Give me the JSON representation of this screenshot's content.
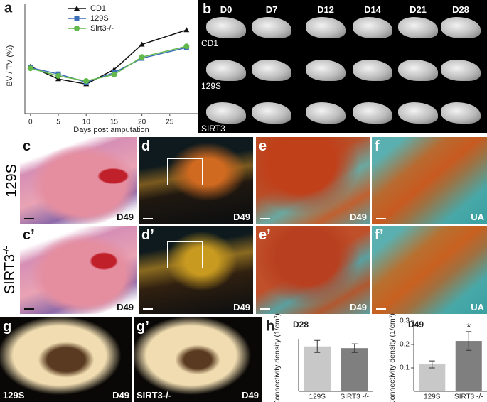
{
  "chart_data": [
    {
      "type": "line",
      "panel": "a",
      "ylabel": "BV / TV (%)",
      "xlabel": "Days post amputation",
      "x": [
        0,
        5,
        10,
        15,
        20,
        28
      ],
      "xlim": [
        -1,
        30
      ],
      "xticks": [
        0,
        5,
        10,
        15,
        20,
        25
      ],
      "ylim": [
        25,
        200
      ],
      "legend": "top",
      "series": [
        {
          "name": "CD1",
          "color": "#111111",
          "marker": "triangle",
          "values": [
            100,
            80,
            72,
            95,
            135,
            158
          ]
        },
        {
          "name": "129S",
          "color": "#3a6fb5",
          "marker": "square",
          "values": [
            98,
            88,
            75,
            90,
            113,
            130
          ]
        },
        {
          "name": "Sirt3-/-",
          "color": "#62b84a",
          "marker": "circle",
          "values": [
            97,
            85,
            77,
            87,
            115,
            132
          ]
        }
      ]
    },
    {
      "type": "bar",
      "panel": "h",
      "title": "D28",
      "ylabel": "Connectivity density (1/cm³)",
      "categories": [
        "129S",
        "SIRT3 -/-"
      ],
      "values": [
        0.26,
        0.25
      ],
      "errors": [
        0.035,
        0.025
      ],
      "colors": [
        "#c8c8c8",
        "#7f7f7f"
      ],
      "ylim": [
        0,
        0.3
      ],
      "yticks": []
    },
    {
      "type": "bar",
      "title": "D49",
      "ylabel": "Connectivity density (1/cm³)",
      "categories": [
        "129S",
        "SIRT3 -/-"
      ],
      "values": [
        0.115,
        0.215
      ],
      "errors": [
        0.015,
        0.04
      ],
      "colors": [
        "#c8c8c8",
        "#7f7f7f"
      ],
      "ylim": [
        0,
        0.3
      ],
      "yticks": [
        0.1,
        0.2,
        0.3
      ],
      "annotation": "*"
    }
  ],
  "panel_b": {
    "label": "b",
    "columns": [
      "D0",
      "D7",
      "D12",
      "D14",
      "D21",
      "D28"
    ],
    "rows": [
      "CD1",
      "129S",
      "SIRT3"
    ]
  },
  "row_labels": [
    {
      "base": "129S",
      "sup": ""
    },
    {
      "base": "SIRT3",
      "sup": "-/-"
    }
  ],
  "panels": {
    "c": {
      "label": "c",
      "tag": "D49"
    },
    "c2": {
      "label": "c’",
      "tag": "D49"
    },
    "d": {
      "label": "d",
      "tag": "D49"
    },
    "d2": {
      "label": "d’",
      "tag": "D49"
    },
    "e": {
      "label": "e",
      "tag": "D49"
    },
    "e2": {
      "label": "e’",
      "tag": "D49"
    },
    "f": {
      "label": "f",
      "tag": "UA"
    },
    "f2": {
      "label": "f’",
      "tag": "UA"
    },
    "g": {
      "label": "g",
      "left": "129S",
      "tag": "D49"
    },
    "g2": {
      "label": "g’",
      "left": "SIRT3-/-",
      "tag": "D49"
    }
  }
}
